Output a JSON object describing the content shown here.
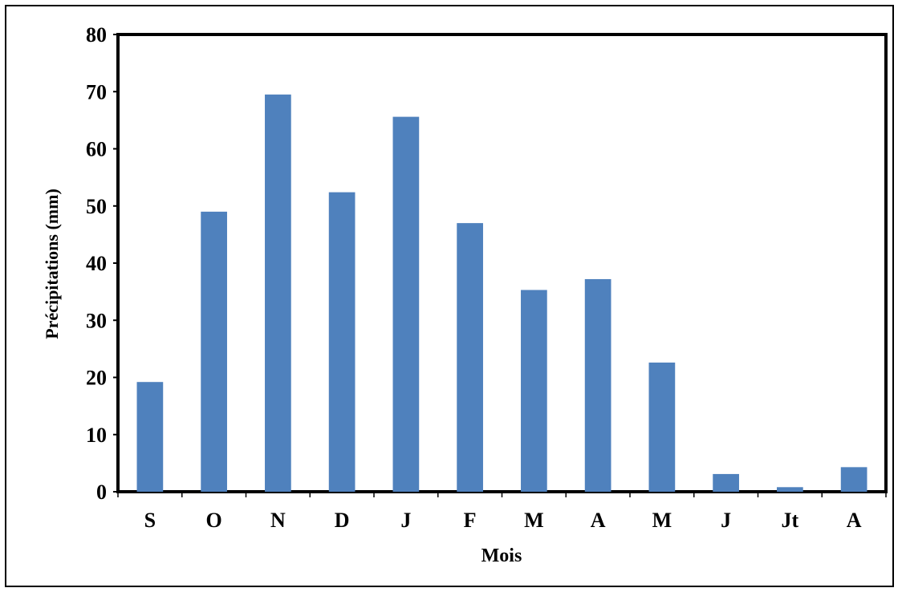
{
  "chart_data": {
    "type": "bar",
    "title": "",
    "xlabel": "Mois",
    "ylabel": "Précipitations (mm)",
    "ylim": [
      0,
      80
    ],
    "yticks": [
      0,
      10,
      20,
      30,
      40,
      50,
      60,
      70,
      80
    ],
    "grid": false,
    "categories": [
      "S",
      "O",
      "N",
      "D",
      "J",
      "F",
      "M",
      "A",
      "M",
      "J",
      "Jt",
      "A"
    ],
    "values": [
      19.2,
      49,
      69.5,
      52.4,
      65.6,
      47,
      35.3,
      37.2,
      22.6,
      3.1,
      0.8,
      4.3
    ],
    "bar_color": "#4f81bd"
  }
}
